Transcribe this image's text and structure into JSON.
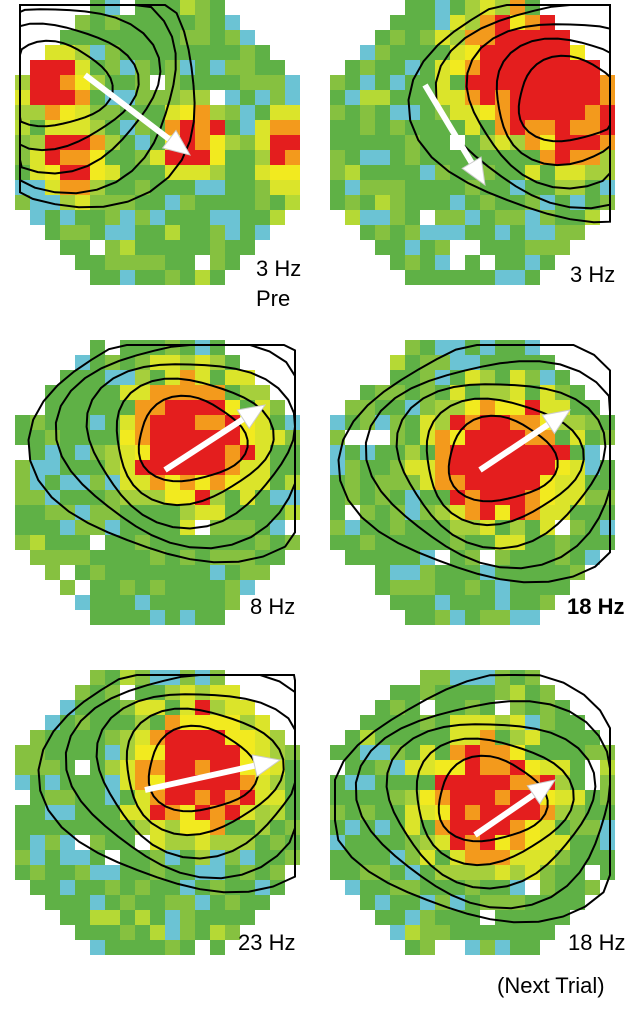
{
  "panels": [
    {
      "label": "3 Hz",
      "sublabel": "Pre"
    },
    {
      "label": "3 Hz"
    },
    {
      "label": "8 Hz"
    },
    {
      "label": "18 Hz"
    },
    {
      "label": "23 Hz"
    },
    {
      "label": "18 Hz",
      "note": "(Next Trial)"
    }
  ]
}
